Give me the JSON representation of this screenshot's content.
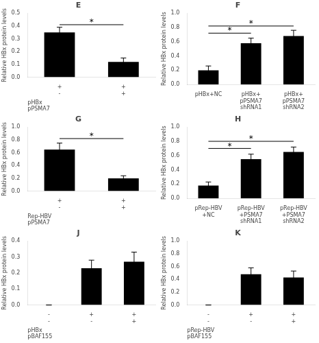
{
  "chart_data": [
    {
      "type": "bar",
      "title": "E",
      "categories": [
        "+\n-",
        "+\n+"
      ],
      "xlabel": "pHBx\npPSMA7",
      "ylabel": "Relative HBx protein levels",
      "values": [
        0.35,
        0.12
      ],
      "errors": [
        0.04,
        0.03
      ],
      "color": "#000000",
      "ylim": [
        0.0,
        0.5
      ],
      "yticks": [
        {
          "value": 0.0,
          "label": "0.0"
        },
        0.1,
        0.2,
        0.3,
        0.4,
        0.5
      ],
      "grid": false,
      "annotations": [
        {
          "text": "*",
          "between": [
            0,
            1
          ],
          "y": 0.41
        }
      ]
    },
    {
      "type": "bar",
      "title": "F",
      "categories": [
        "pHBx+NC",
        "pHBx+\npPSMA7\nshRNA1",
        "pHBx+\npPSMA7\nshRNA2"
      ],
      "ylabel": "Relative HBx protein levels",
      "values": [
        0.2,
        0.58,
        0.68
      ],
      "errors": [
        0.06,
        0.07,
        0.08
      ],
      "color": "#000000",
      "ylim": [
        0.0,
        1.0
      ],
      "yticks": [
        {
          "value": 0.0,
          "label": "0.0"
        },
        0.2,
        0.4,
        0.6,
        0.8,
        {
          "value": 1.0,
          "label": "1.0"
        }
      ],
      "grid": false,
      "annotations": [
        {
          "text": "*",
          "between": [
            0,
            1
          ],
          "y": 0.72
        },
        {
          "text": "*",
          "between": [
            0,
            2
          ],
          "y": 0.82
        }
      ]
    },
    {
      "type": "bar",
      "title": "G",
      "categories": [
        "+\n-",
        "+\n+"
      ],
      "xlabel": "Rep-HBV\npPSMA7",
      "ylabel": "Relative HBx protein levels",
      "values": [
        0.65,
        0.2
      ],
      "errors": [
        0.1,
        0.04
      ],
      "color": "#000000",
      "ylim": [
        0.0,
        1.0
      ],
      "yticks": [
        {
          "value": 0.0,
          "label": "0.0"
        },
        0.2,
        0.4,
        0.6,
        0.8,
        {
          "value": 1.0,
          "label": "1.0"
        }
      ],
      "grid": false,
      "annotations": [
        {
          "text": "*",
          "between": [
            0,
            1
          ],
          "y": 0.82
        }
      ]
    },
    {
      "type": "bar",
      "title": "H",
      "categories": [
        "pRep-HBV\n+NC",
        "pRep-HBV\n+PSMA7\nshRNA1",
        "pRep-HBV\n+PSMA7\nshRNA2"
      ],
      "ylabel": "Relative HBx protein levels",
      "values": [
        0.18,
        0.55,
        0.65
      ],
      "errors": [
        0.05,
        0.07,
        0.07
      ],
      "color": "#000000",
      "ylim": [
        0.0,
        1.0
      ],
      "yticks": [
        {
          "value": 0.0,
          "label": "0.0"
        },
        0.2,
        0.4,
        0.6,
        0.8,
        {
          "value": 1.0,
          "label": "1.0"
        }
      ],
      "grid": false,
      "annotations": [
        {
          "text": "*",
          "between": [
            0,
            1
          ],
          "y": 0.7
        },
        {
          "text": "*",
          "between": [
            0,
            2
          ],
          "y": 0.8
        }
      ]
    },
    {
      "type": "bar",
      "title": "J",
      "categories": [
        "-\n-",
        "+\n-",
        "+\n+"
      ],
      "xlabel": "pHBx\npBAF155",
      "ylabel": "Relative HBx protein levels",
      "values": [
        0.0,
        0.23,
        0.27
      ],
      "errors": [
        0.0,
        0.05,
        0.06
      ],
      "color": "#000000",
      "ylim": [
        0.0,
        0.4
      ],
      "yticks": [
        {
          "value": 0.0,
          "label": "0.0"
        },
        0.1,
        0.2,
        0.3,
        0.4
      ],
      "grid": false
    },
    {
      "type": "bar",
      "title": "K",
      "categories": [
        "-\n-",
        "+\n-",
        "+\n+"
      ],
      "xlabel": "pRep-HBV\npBAF155",
      "ylabel": "Relative HBx protein levels",
      "values": [
        0.0,
        0.48,
        0.43
      ],
      "errors": [
        0.0,
        0.1,
        0.1
      ],
      "color": "#000000",
      "ylim": [
        0.0,
        1.0
      ],
      "yticks": [
        {
          "value": 0.0,
          "label": "0.0"
        },
        0.2,
        0.4,
        0.6,
        0.8,
        {
          "value": 1.0,
          "label": "1.0"
        }
      ],
      "grid": false
    }
  ]
}
